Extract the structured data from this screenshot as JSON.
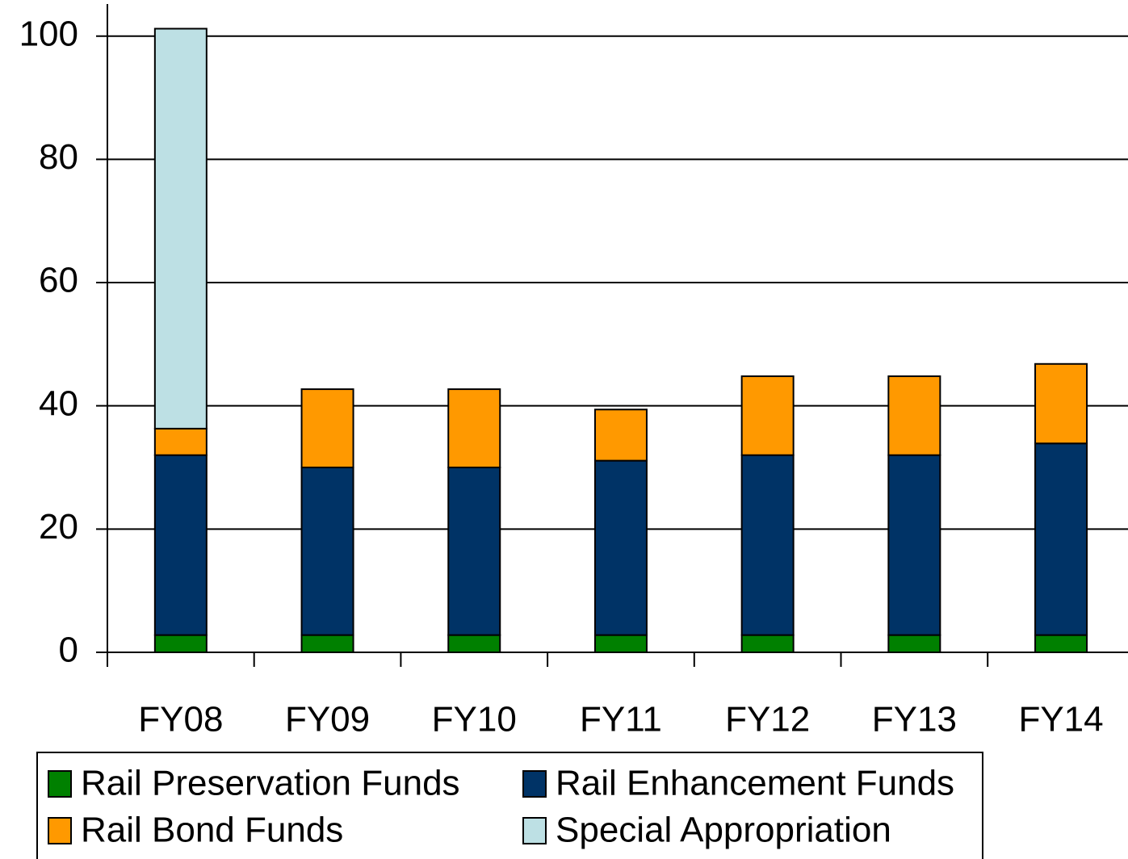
{
  "chart_data": {
    "type": "stacked_bar",
    "categories": [
      "FY08",
      "FY09",
      "FY10",
      "FY11",
      "FY12",
      "FY13",
      "FY14"
    ],
    "series": [
      {
        "name": "Rail Preservation Funds",
        "color": "#008000",
        "values": [
          2.8,
          2.8,
          2.8,
          2.8,
          2.8,
          2.8,
          2.8
        ]
      },
      {
        "name": "Rail Enhancement Funds",
        "color": "#003366",
        "values": [
          29.2,
          27.2,
          27.2,
          28.3,
          29.2,
          29.2,
          31.1
        ]
      },
      {
        "name": "Rail Bond Funds",
        "color": "#ff9900",
        "values": [
          4.3,
          12.7,
          12.7,
          8.3,
          12.8,
          12.8,
          12.9
        ]
      },
      {
        "name": "Special Appropriation",
        "color": "#bde0e4",
        "values": [
          64.9,
          0,
          0,
          0,
          0,
          0,
          0
        ]
      }
    ],
    "ylim": [
      0,
      105.2
    ],
    "yticks": [
      0,
      20,
      40,
      60,
      80,
      100
    ],
    "grid": true
  }
}
